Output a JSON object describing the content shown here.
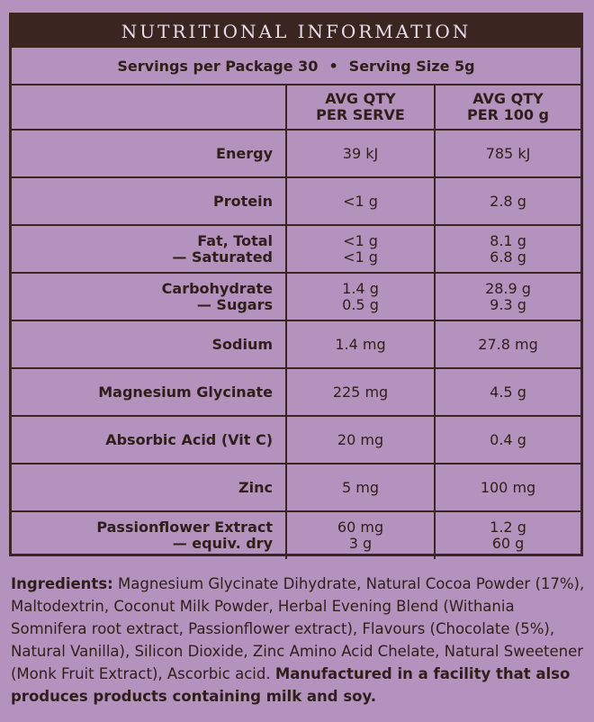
{
  "panel": {
    "title": "NUTRITIONAL INFORMATION",
    "servings_per_package": "Servings per Package 30",
    "separator": "•",
    "serving_size": "Serving Size 5g",
    "col_serve_l1": "AVG QTY",
    "col_serve_l2": "PER SERVE",
    "col_100_l1": "AVG QTY",
    "col_100_l2": "PER 100 g",
    "rows": [
      {
        "label": "Energy",
        "serve": "39 kJ",
        "per100": "785 kJ"
      },
      {
        "label": "Protein",
        "serve": "<1 g",
        "per100": "2.8 g"
      },
      {
        "label": "Fat, Total",
        "label2": "— Saturated",
        "serve": "<1 g",
        "serve2": "<1 g",
        "per100": "8.1 g",
        "per100_2": "6.8 g"
      },
      {
        "label": "Carbohydrate",
        "label2": "— Sugars",
        "serve": "1.4 g",
        "serve2": "0.5 g",
        "per100": "28.9 g",
        "per100_2": "9.3 g"
      },
      {
        "label": "Sodium",
        "serve": "1.4 mg",
        "per100": "27.8 mg"
      },
      {
        "label": "Magnesium Glycinate",
        "serve": "225 mg",
        "per100": "4.5 g"
      },
      {
        "label": "Absorbic Acid (Vit C)",
        "serve": "20 mg",
        "per100": "0.4 g"
      },
      {
        "label": "Zinc",
        "serve": "5 mg",
        "per100": "100 mg"
      },
      {
        "label": "Passionflower Extract",
        "label2": "— equiv. dry",
        "serve": "60 mg",
        "serve2": "3 g",
        "per100": "1.2 g",
        "per100_2": "60 g"
      }
    ]
  },
  "ingredients": {
    "heading": "Ingredients:",
    "text": " Magnesium Glycinate Dihydrate, Natural Cocoa Powder (17%), Maltodextrin, Coconut Milk Powder, Herbal Evening Blend (Withania Somnifera root extract, Passionflower extract), Flavours (Chocolate (5%), Natural Vanilla), Silicon Dioxide, Zinc Amino Acid Chelate, Natural Sweetener (Monk Fruit Extract), Ascorbic acid. ",
    "allergen": "Manufactured in a facility that also produces products containing milk and soy."
  }
}
